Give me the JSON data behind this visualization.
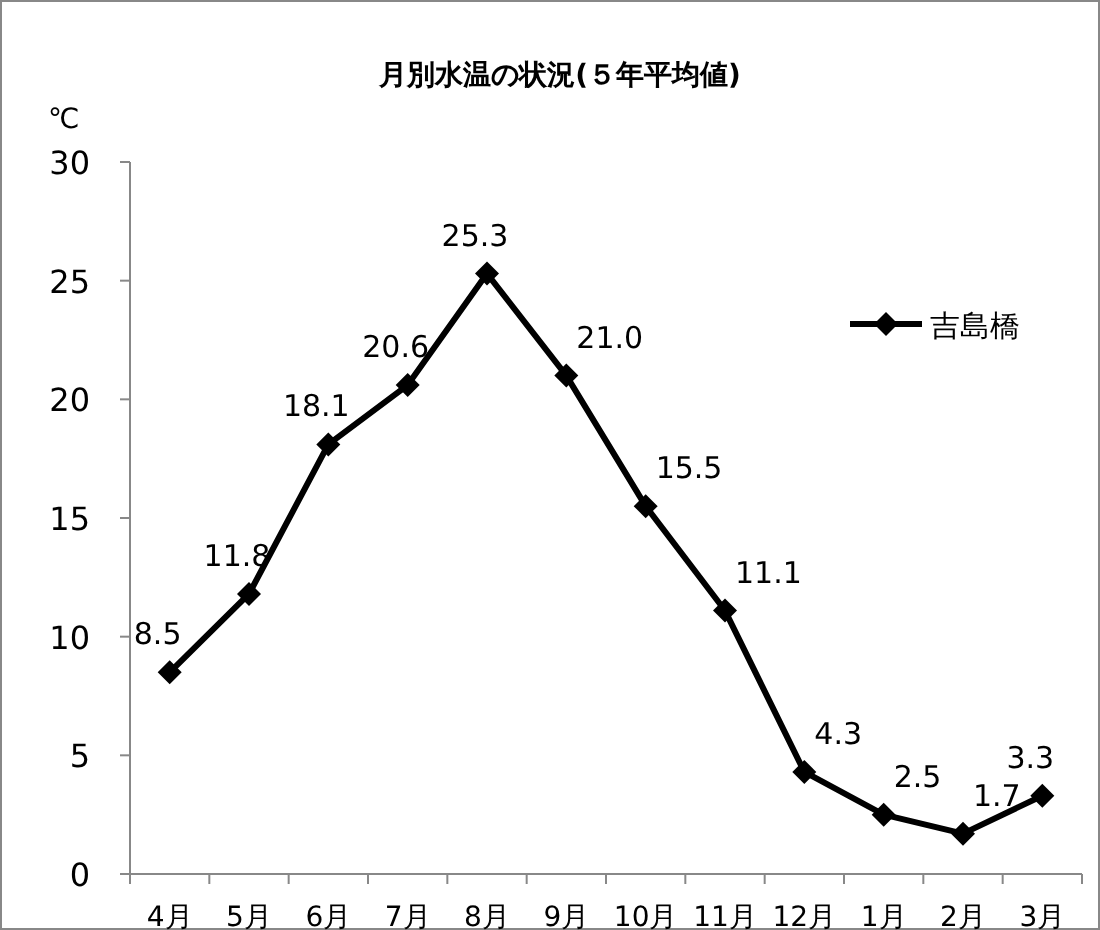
{
  "chart_data": {
    "type": "line",
    "title": "月別水温の状況(５年平均値)",
    "ylabel": "℃",
    "categories": [
      "4月",
      "5月",
      "6月",
      "7月",
      "8月",
      "9月",
      "10月",
      "11月",
      "12月",
      "1月",
      "2月",
      "3月"
    ],
    "series": [
      {
        "name": "吉島橋",
        "color": "#000000",
        "values": [
          8.5,
          11.8,
          18.1,
          20.6,
          25.3,
          21.0,
          15.5,
          11.1,
          4.3,
          2.5,
          1.7,
          3.3
        ],
        "value_labels": [
          "8.5",
          "11.8",
          "18.1",
          "20.6",
          "25.3",
          "21.0",
          "15.5",
          "11.1",
          "4.3",
          "2.5",
          "1.7",
          "3.3"
        ]
      }
    ],
    "ylim": [
      0,
      30
    ],
    "yticks": [
      0,
      5,
      10,
      15,
      20,
      25,
      30
    ],
    "legend": "top right",
    "marker": "diamond",
    "grid": false
  }
}
